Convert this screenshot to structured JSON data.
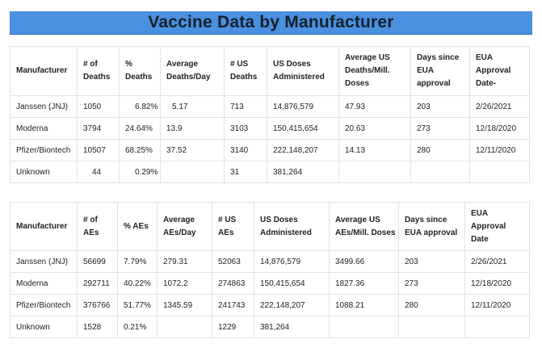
{
  "title": "Vaccine Data by Manufacturer",
  "deaths_table": {
    "headers": [
      "Manufacturer",
      "# of Deaths",
      "% Deaths",
      "Average Deaths/Day",
      "# US Deaths",
      "US Doses Administered",
      "Average US Deaths/Mill. Doses",
      "Days since EUA approval",
      "EUA Approval Date-"
    ],
    "rows": [
      [
        "Janssen (JNJ)",
        "1050",
        "6.82%",
        "5.17",
        "713",
        "14,876,579",
        "47.93",
        "203",
        "2/26/2021"
      ],
      [
        "Moderna",
        "3794",
        "24.64%",
        "13.9",
        "3103",
        "150,415,654",
        "20.63",
        "273",
        "12/18/2020"
      ],
      [
        "Pfizer/Biontech",
        "10507",
        "68.25%",
        "37.52",
        "3140",
        "222,148,207",
        "14.13",
        "280",
        "12/11/2020"
      ],
      [
        "Unknown",
        "44",
        "0.29%",
        "",
        "31",
        "381,264",
        "",
        "",
        ""
      ]
    ]
  },
  "aes_table": {
    "headers": [
      "Manufacturer",
      "# of AEs",
      "% AEs",
      "Average AEs/Day",
      "# US AEs",
      "US Doses Administered",
      "Average US AEs/Mill. Doses",
      "Days since EUA approval",
      "EUA Approval Date"
    ],
    "rows": [
      [
        "Janssen (JNJ)",
        "56699",
        "7.79%",
        "279.31",
        "52063",
        "14,876,579",
        "3499.66",
        "203",
        "2/26/2021"
      ],
      [
        "Moderna",
        "292711",
        "40.22%",
        "1072.2",
        "274863",
        "150,415,654",
        "1827.36",
        "273",
        "12/18/2020"
      ],
      [
        "Pfizer/Biontech",
        "376766",
        "51.77%",
        "1345.59",
        "241743",
        "222,148,207",
        "1088.21",
        "280",
        "12/11/2020"
      ],
      [
        "Unknown",
        "1528",
        "0.21%",
        "",
        "1229",
        "381,264",
        "",
        "",
        ""
      ]
    ]
  }
}
